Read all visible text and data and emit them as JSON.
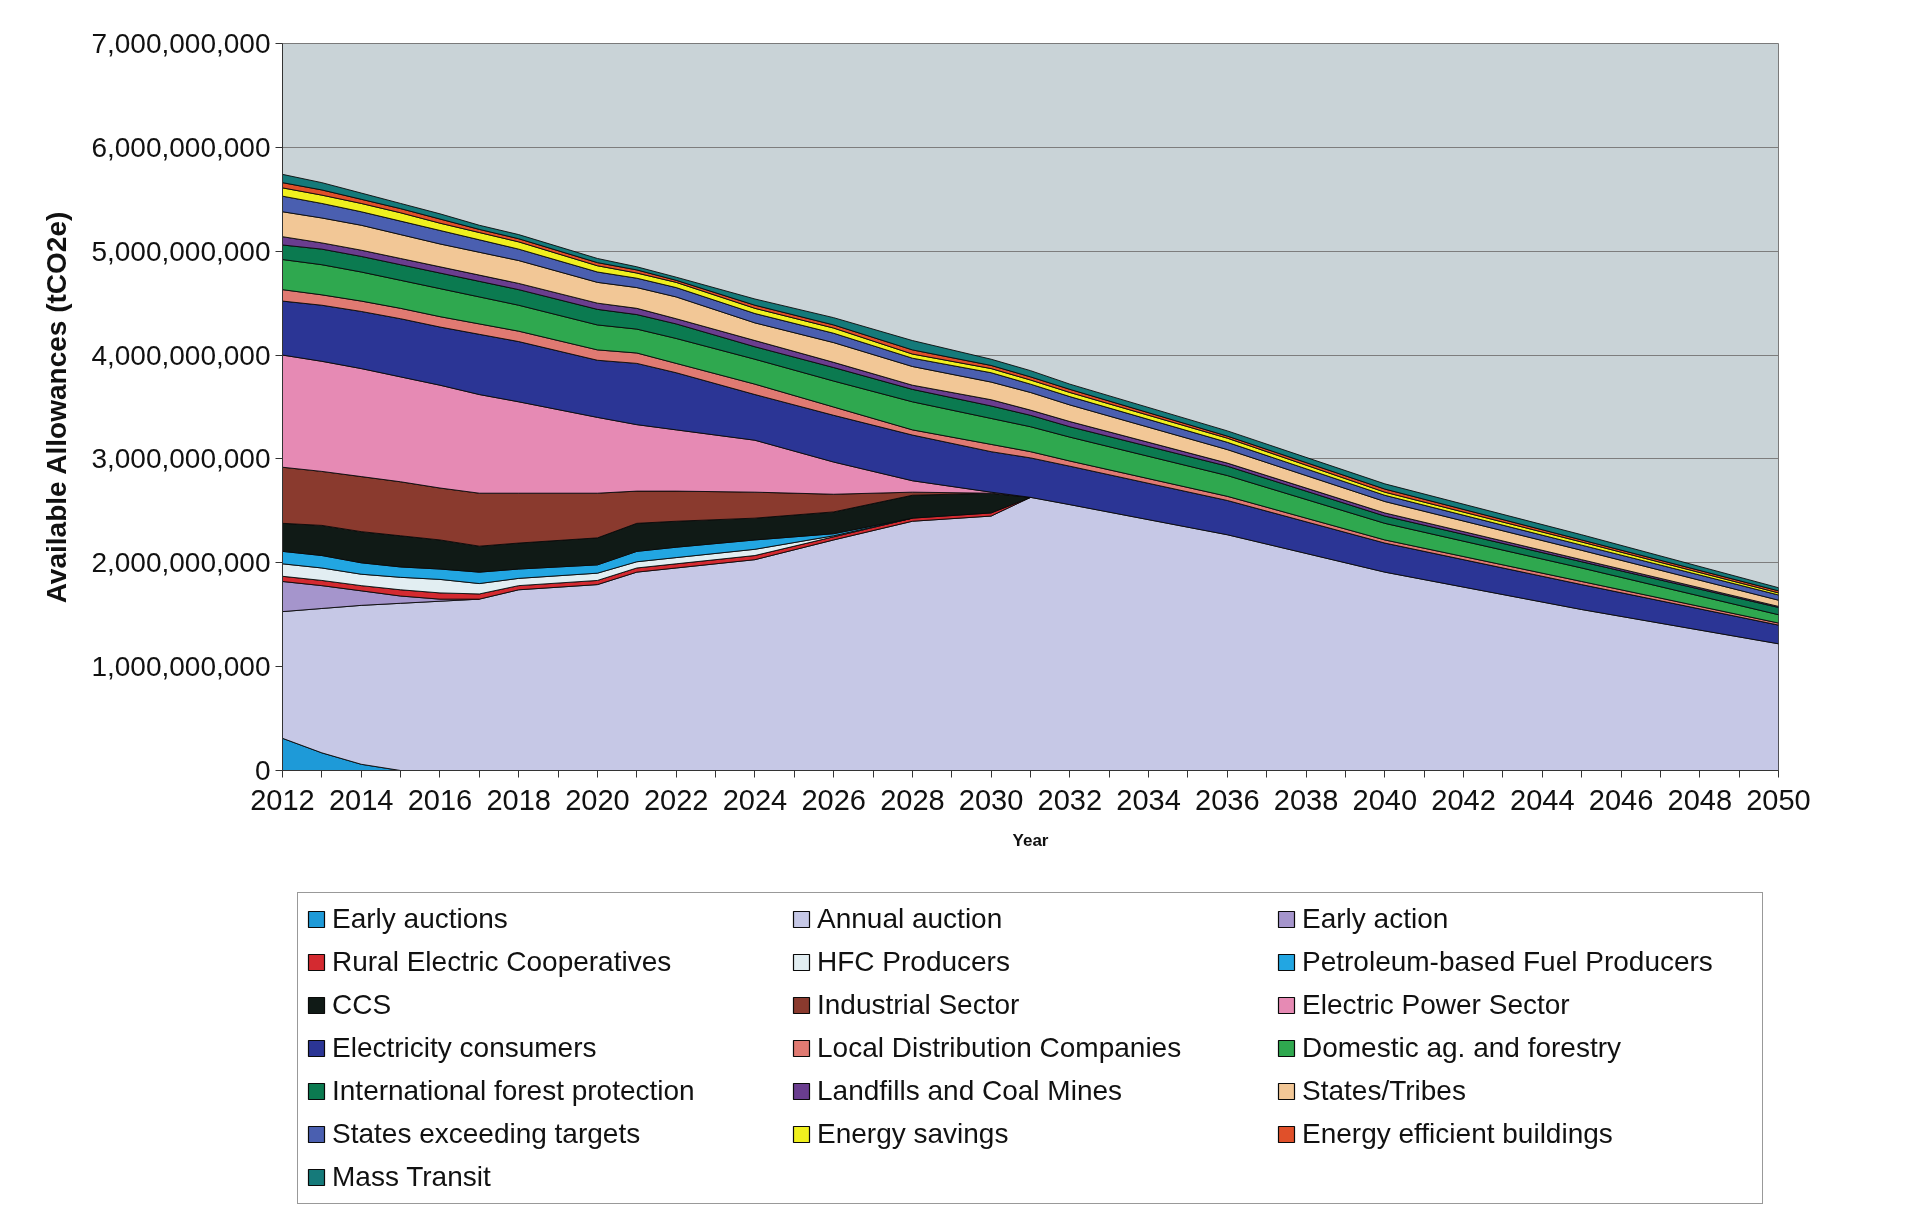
{
  "chart_data": {
    "type": "area",
    "stacked": true,
    "xlabel": "Year",
    "ylabel": "Available Allowances (tCO2e)",
    "x": [
      2012,
      2013,
      2014,
      2015,
      2016,
      2017,
      2018,
      2020,
      2021,
      2022,
      2024,
      2026,
      2028,
      2030,
      2031,
      2032,
      2036,
      2040,
      2045,
      2050
    ],
    "xlim": [
      2012,
      2050
    ],
    "xticks": [
      2012,
      {
        "value": 2013,
        "label": null
      },
      2014,
      {
        "value": 2015,
        "label": null
      },
      2016,
      {
        "value": 2017,
        "label": null
      },
      2018,
      {
        "value": 2019,
        "label": null
      },
      2020,
      {
        "value": 2021,
        "label": null
      },
      2022,
      {
        "value": 2023,
        "label": null
      },
      2024,
      {
        "value": 2025,
        "label": null
      },
      2026,
      {
        "value": 2027,
        "label": null
      },
      2028,
      {
        "value": 2029,
        "label": null
      },
      2030,
      {
        "value": 2031,
        "label": null
      },
      2032,
      {
        "value": 2033,
        "label": null
      },
      2034,
      {
        "value": 2035,
        "label": null
      },
      2036,
      {
        "value": 2037,
        "label": null
      },
      2038,
      {
        "value": 2039,
        "label": null
      },
      2040,
      {
        "value": 2041,
        "label": null
      },
      2042,
      {
        "value": 2043,
        "label": null
      },
      2044,
      {
        "value": 2045,
        "label": null
      },
      2046,
      {
        "value": 2047,
        "label": null
      },
      2048,
      {
        "value": 2049,
        "label": null
      },
      2050
    ],
    "ylim": [
      0,
      7000000000
    ],
    "yticks": [
      0,
      {
        "value": 1000000000,
        "label": "1,000,000,000"
      },
      {
        "value": 2000000000,
        "label": "2,000,000,000"
      },
      {
        "value": 3000000000,
        "label": "3,000,000,000"
      },
      {
        "value": 4000000000,
        "label": "4,000,000,000"
      },
      {
        "value": 5000000000,
        "label": "5,000,000,000"
      },
      {
        "value": 6000000000,
        "label": "6,000,000,000"
      },
      {
        "value": 7000000000,
        "label": "7,000,000,000"
      }
    ],
    "grid": "y",
    "legend": "bottom",
    "series": [
      {
        "name": "Early auctions",
        "color": "#1e9ad8",
        "values": [
          310000000.0,
          170000000.0,
          60000000.0,
          0,
          null,
          null,
          null,
          null,
          null,
          null,
          null,
          null,
          null,
          null,
          null,
          null,
          null,
          null,
          null,
          null
        ]
      },
      {
        "name": "Annual auction",
        "color": "#c6c8e6",
        "values": [
          1220000000.0,
          1390000000.0,
          1530000000.0,
          1610000000.0,
          1630000000.0,
          1650000000.0,
          1740000000.0,
          1790000000.0,
          1910000000.0,
          1950000000.0,
          2030000000.0,
          2220000000.0,
          2400000000.0,
          2450000000.0,
          2630000000.0,
          2560000000.0,
          2270000000.0,
          1910000000.0,
          1550000000.0,
          1220000000.0
        ]
      },
      {
        "name": "Early action",
        "color": "#a595cc",
        "values": [
          290000000.0,
          220000000.0,
          140000000.0,
          70000000.0,
          20000000.0,
          0,
          null,
          null,
          null,
          null,
          null,
          null,
          null,
          null,
          null,
          null,
          null,
          null,
          null,
          null
        ]
      },
      {
        "name": "Rural Electric Cooperatives",
        "color": "#d42a30",
        "values": [
          50000000.0,
          50000000.0,
          50000000.0,
          60000000.0,
          60000000.0,
          50000000.0,
          40000000.0,
          40000000.0,
          40000000.0,
          40000000.0,
          40000000.0,
          30000000.0,
          30000000.0,
          30000000.0,
          0,
          null,
          null,
          null,
          null,
          null
        ]
      },
      {
        "name": "HFC Producers",
        "color": "#e2eef2",
        "values": [
          120000000.0,
          120000000.0,
          110000000.0,
          120000000.0,
          130000000.0,
          100000000.0,
          70000000.0,
          70000000.0,
          60000000.0,
          60000000.0,
          60000000.0,
          10000000.0,
          0,
          null,
          null,
          null,
          null,
          null,
          null,
          null
        ]
      },
      {
        "name": "Petroleum-based Fuel Producers",
        "color": "#22a6e2",
        "values": [
          120000000.0,
          120000000.0,
          110000000.0,
          100000000.0,
          100000000.0,
          110000000.0,
          90000000.0,
          80000000.0,
          100000000.0,
          100000000.0,
          90000000.0,
          20000000.0,
          0,
          null,
          null,
          null,
          null,
          null,
          null,
          null
        ]
      },
      {
        "name": "CCS",
        "color": "#101a16",
        "values": [
          270000000.0,
          290000000.0,
          300000000.0,
          300000000.0,
          280000000.0,
          250000000.0,
          250000000.0,
          260000000.0,
          270000000.0,
          250000000.0,
          210000000.0,
          210000000.0,
          220000000.0,
          190000000.0,
          0,
          null,
          null,
          null,
          null,
          null
        ]
      },
      {
        "name": "Industrial Sector",
        "color": "#8a3a2e",
        "values": [
          540000000.0,
          520000000.0,
          530000000.0,
          520000000.0,
          500000000.0,
          510000000.0,
          480000000.0,
          430000000.0,
          310000000.0,
          290000000.0,
          250000000.0,
          170000000.0,
          30000000.0,
          0,
          null,
          null,
          null,
          null,
          null,
          null
        ]
      },
      {
        "name": "Electric Power Sector",
        "color": "#e68ab4",
        "values": [
          1080000000.0,
          1060000000.0,
          1040000000.0,
          1010000000.0,
          990000000.0,
          950000000.0,
          880000000.0,
          730000000.0,
          640000000.0,
          590000000.0,
          500000000.0,
          310000000.0,
          110000000.0,
          10000000.0,
          0,
          null,
          null,
          null,
          null,
          null
        ]
      },
      {
        "name": "Electricity consumers",
        "color": "#2b3595",
        "values": [
          520000000.0,
          540000000.0,
          550000000.0,
          560000000.0,
          560000000.0,
          580000000.0,
          580000000.0,
          550000000.0,
          590000000.0,
          550000000.0,
          440000000.0,
          450000000.0,
          440000000.0,
          390000000.0,
          380000000.0,
          370000000.0,
          330000000.0,
          280000000.0,
          240000000.0,
          180000000.0
        ]
      },
      {
        "name": "Local Distribution Companies",
        "color": "#e07a72",
        "values": [
          110000000.0,
          100000000.0,
          100000000.0,
          100000000.0,
          100000000.0,
          100000000.0,
          100000000.0,
          100000000.0,
          100000000.0,
          90000000.0,
          100000000.0,
          80000000.0,
          50000000.0,
          70000000.0,
          60000000.0,
          50000000.0,
          40000000.0,
          30000000.0,
          30000000.0,
          20000000.0
        ]
      },
      {
        "name": "Domestic ag. and forestry",
        "color": "#2fa84f",
        "values": [
          290000000.0,
          290000000.0,
          280000000.0,
          270000000.0,
          270000000.0,
          260000000.0,
          250000000.0,
          240000000.0,
          230000000.0,
          240000000.0,
          240000000.0,
          250000000.0,
          270000000.0,
          250000000.0,
          240000000.0,
          230000000.0,
          200000000.0,
          160000000.0,
          130000000.0,
          80000000.0
        ]
      },
      {
        "name": "International forest protection",
        "color": "#0b7a50",
        "values": [
          140000000.0,
          150000000.0,
          150000000.0,
          150000000.0,
          150000000.0,
          150000000.0,
          150000000.0,
          150000000.0,
          140000000.0,
          140000000.0,
          120000000.0,
          130000000.0,
          120000000.0,
          120000000.0,
          110000000.0,
          100000000.0,
          90000000.0,
          70000000.0,
          60000000.0,
          70000000.0
        ]
      },
      {
        "name": "Landfills and Coal Mines",
        "color": "#6a3d8f",
        "values": [
          80000000.0,
          60000000.0,
          60000000.0,
          60000000.0,
          60000000.0,
          60000000.0,
          60000000.0,
          60000000.0,
          60000000.0,
          50000000.0,
          60000000.0,
          50000000.0,
          40000000.0,
          60000000.0,
          50000000.0,
          50000000.0,
          30000000.0,
          30000000.0,
          20000000.0,
          10000000.0
        ]
      },
      {
        "name": "States/Tribes",
        "color": "#f2c796",
        "values": [
          240000000.0,
          240000000.0,
          240000000.0,
          230000000.0,
          220000000.0,
          220000000.0,
          220000000.0,
          200000000.0,
          200000000.0,
          210000000.0,
          170000000.0,
          190000000.0,
          180000000.0,
          170000000.0,
          170000000.0,
          160000000.0,
          130000000.0,
          110000000.0,
          90000000.0,
          60000000.0
        ]
      },
      {
        "name": "States exceeding targets",
        "color": "#4a5fb0",
        "values": [
          150000000.0,
          140000000.0,
          130000000.0,
          130000000.0,
          130000000.0,
          120000000.0,
          110000000.0,
          100000000.0,
          90000000.0,
          90000000.0,
          90000000.0,
          90000000.0,
          80000000.0,
          90000000.0,
          80000000.0,
          80000000.0,
          70000000.0,
          60000000.0,
          50000000.0,
          50000000.0
        ]
      },
      {
        "name": "Energy savings",
        "color": "#f0f01e",
        "values": [
          80000000.0,
          80000000.0,
          80000000.0,
          80000000.0,
          70000000.0,
          70000000.0,
          70000000.0,
          60000000.0,
          50000000.0,
          50000000.0,
          50000000.0,
          50000000.0,
          40000000.0,
          40000000.0,
          40000000.0,
          40000000.0,
          40000000.0,
          30000000.0,
          30000000.0,
          20000000.0
        ]
      },
      {
        "name": "Energy efficient buildings",
        "color": "#e0502a",
        "values": [
          50000000.0,
          50000000.0,
          40000000.0,
          40000000.0,
          40000000.0,
          30000000.0,
          30000000.0,
          30000000.0,
          30000000.0,
          20000000.0,
          30000000.0,
          30000000.0,
          40000000.0,
          30000000.0,
          30000000.0,
          30000000.0,
          20000000.0,
          30000000.0,
          20000000.0,
          20000000.0
        ]
      },
      {
        "name": "Mass Transit",
        "color": "#157a7a",
        "values": [
          80000000.0,
          70000000.0,
          60000000.0,
          50000000.0,
          50000000.0,
          40000000.0,
          40000000.0,
          40000000.0,
          30000000.0,
          30000000.0,
          60000000.0,
          70000000.0,
          90000000.0,
          60000000.0,
          60000000.0,
          50000000.0,
          50000000.0,
          50000000.0,
          50000000.0,
          30000000.0
        ]
      }
    ]
  }
}
